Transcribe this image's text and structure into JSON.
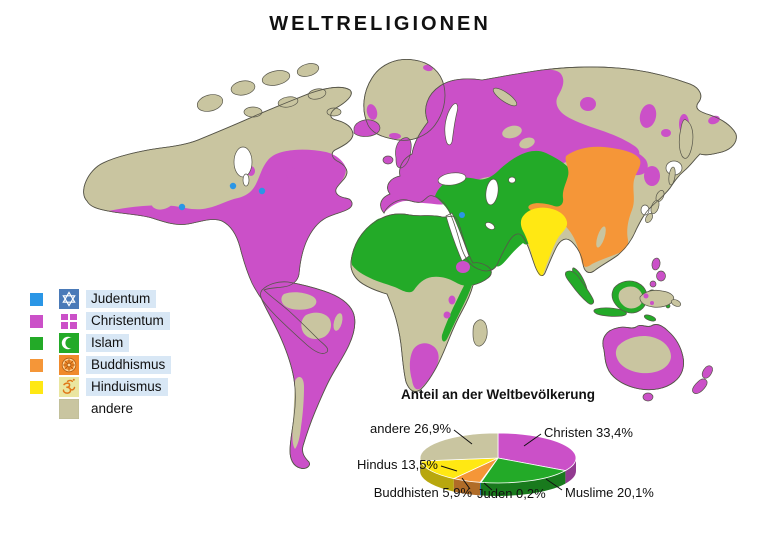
{
  "window": {
    "title": "WELTRELIGIONEN"
  },
  "colors": {
    "judentum": "#2a96e6",
    "christentum": "#cb50c8",
    "islam": "#23aa28",
    "buddhismus": "#f59638",
    "hinduismus": "#ffe813",
    "andere": "#c9c5a0",
    "outline": "#57564a",
    "water": "#ffffff",
    "label_bg": "#d8e7f5"
  },
  "legend": {
    "items": [
      {
        "id": "judentum",
        "label": "Judentum",
        "icon": "star-of-david",
        "tile": "#4a7ab8"
      },
      {
        "id": "christentum",
        "label": "Christentum",
        "icon": "christian-cross",
        "tile": "#ffffff"
      },
      {
        "id": "islam",
        "label": "Islam",
        "icon": "crescent",
        "tile": "#23aa28"
      },
      {
        "id": "buddhismus",
        "label": "Buddhismus",
        "icon": "dharma-wheel",
        "tile": "#f08a2c"
      },
      {
        "id": "hinduismus",
        "label": "Hinduismus",
        "icon": "om",
        "tile": "#eae6a0"
      },
      {
        "id": "andere",
        "label": "andere",
        "icon": null,
        "tile": "#c9c5a0"
      }
    ]
  },
  "chart_data": {
    "type": "pie",
    "style": "3d",
    "title": "Anteil an der Weltbevölkerung",
    "start_angle_deg": 0,
    "direction": "clockwise",
    "slices": [
      {
        "label": "Christen",
        "value": 33.4,
        "display": "Christen 33,4%",
        "color": "#cb50c8"
      },
      {
        "label": "Muslime",
        "value": 20.1,
        "display": "Muslime 20,1%",
        "color": "#23aa28"
      },
      {
        "label": "Juden",
        "value": 0.2,
        "display": "Juden 0,2%",
        "color": "#2a96e6"
      },
      {
        "label": "Buddhisten",
        "value": 5.9,
        "display": "Buddhisten 5,9%",
        "color": "#f59638"
      },
      {
        "label": "Hindus",
        "value": 13.5,
        "display": "Hindus 13,5%",
        "color": "#ffe813"
      },
      {
        "label": "andere",
        "value": 26.9,
        "display": "andere 26,9%",
        "color": "#c9c5a0"
      }
    ]
  }
}
